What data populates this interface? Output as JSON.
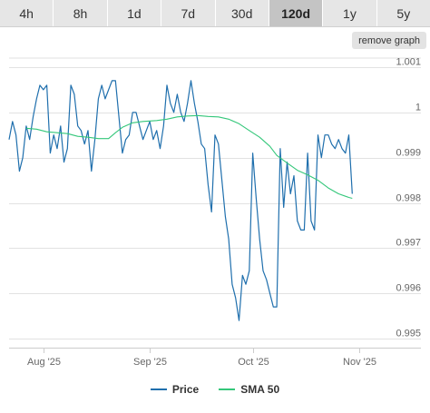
{
  "tabs": [
    {
      "label": "4h",
      "active": false
    },
    {
      "label": "8h",
      "active": false
    },
    {
      "label": "1d",
      "active": false
    },
    {
      "label": "7d",
      "active": false
    },
    {
      "label": "30d",
      "active": false
    },
    {
      "label": "120d",
      "active": true
    },
    {
      "label": "1y",
      "active": false
    },
    {
      "label": "5y",
      "active": false
    }
  ],
  "remove_graph_label": "remove graph",
  "colors": {
    "price": "#1f6fad",
    "sma": "#34c77a",
    "grid": "#e2e2e2",
    "tab_bg": "#e6e6e6",
    "tab_active": "#c4c4c4"
  },
  "chart_data": {
    "type": "line",
    "title": "",
    "xlabel": "",
    "ylabel": "",
    "ylim": [
      0.9948,
      1.0012
    ],
    "yticks": [
      0.995,
      0.996,
      0.997,
      0.998,
      0.999,
      1,
      1.001
    ],
    "ytick_labels": [
      "0.995",
      "0.996",
      "0.997",
      "0.998",
      "0.999",
      "1",
      "1.001"
    ],
    "xticks": [
      "2025-08-01",
      "2025-09-01",
      "2025-10-01",
      "2025-11-01"
    ],
    "xtick_labels": [
      "Aug '25",
      "Sep '25",
      "Oct '25",
      "Nov '25"
    ],
    "xlim": [
      "2025-07-22",
      "2025-11-19"
    ],
    "grid": true,
    "legend_position": "bottom-center",
    "series": [
      {
        "name": "Price",
        "points": [
          [
            "2025-07-22",
            0.9994
          ],
          [
            "2025-07-23",
            0.9998
          ],
          [
            "2025-07-24",
            0.9995
          ],
          [
            "2025-07-25",
            0.9987
          ],
          [
            "2025-07-26",
            0.999
          ],
          [
            "2025-07-27",
            0.9997
          ],
          [
            "2025-07-28",
            0.9994
          ],
          [
            "2025-07-29",
            0.9999
          ],
          [
            "2025-07-30",
            1.0003
          ],
          [
            "2025-07-31",
            1.0006
          ],
          [
            "2025-08-01",
            1.0005
          ],
          [
            "2025-08-02",
            1.0006
          ],
          [
            "2025-08-03",
            0.9991
          ],
          [
            "2025-08-04",
            0.9995
          ],
          [
            "2025-08-05",
            0.9992
          ],
          [
            "2025-08-06",
            0.9997
          ],
          [
            "2025-08-07",
            0.9989
          ],
          [
            "2025-08-08",
            0.9992
          ],
          [
            "2025-08-09",
            1.0006
          ],
          [
            "2025-08-10",
            1.0004
          ],
          [
            "2025-08-11",
            0.9997
          ],
          [
            "2025-08-12",
            0.9996
          ],
          [
            "2025-08-13",
            0.9993
          ],
          [
            "2025-08-14",
            0.9996
          ],
          [
            "2025-08-15",
            0.9987
          ],
          [
            "2025-08-16",
            0.9994
          ],
          [
            "2025-08-17",
            1.0003
          ],
          [
            "2025-08-18",
            1.0006
          ],
          [
            "2025-08-19",
            1.0003
          ],
          [
            "2025-08-20",
            1.0005
          ],
          [
            "2025-08-21",
            1.0007
          ],
          [
            "2025-08-22",
            1.0007
          ],
          [
            "2025-08-23",
            0.9999
          ],
          [
            "2025-08-24",
            0.9991
          ],
          [
            "2025-08-25",
            0.9994
          ],
          [
            "2025-08-26",
            0.9995
          ],
          [
            "2025-08-27",
            1.0
          ],
          [
            "2025-08-28",
            1.0
          ],
          [
            "2025-08-29",
            0.9997
          ],
          [
            "2025-08-30",
            0.9994
          ],
          [
            "2025-08-31",
            0.9996
          ],
          [
            "2025-09-01",
            0.9998
          ],
          [
            "2025-09-02",
            0.9994
          ],
          [
            "2025-09-03",
            0.9996
          ],
          [
            "2025-09-04",
            0.9992
          ],
          [
            "2025-09-05",
            0.9997
          ],
          [
            "2025-09-06",
            1.0006
          ],
          [
            "2025-09-07",
            1.0002
          ],
          [
            "2025-09-08",
            1.0
          ],
          [
            "2025-09-09",
            1.0004
          ],
          [
            "2025-09-10",
            1.0
          ],
          [
            "2025-09-11",
            0.9998
          ],
          [
            "2025-09-12",
            1.0002
          ],
          [
            "2025-09-13",
            1.0007
          ],
          [
            "2025-09-14",
            1.0002
          ],
          [
            "2025-09-15",
            0.9998
          ],
          [
            "2025-09-16",
            0.9993
          ],
          [
            "2025-09-17",
            0.9992
          ],
          [
            "2025-09-18",
            0.9984
          ],
          [
            "2025-09-19",
            0.9978
          ],
          [
            "2025-09-20",
            0.9995
          ],
          [
            "2025-09-21",
            0.9993
          ],
          [
            "2025-09-22",
            0.9985
          ],
          [
            "2025-09-23",
            0.9977
          ],
          [
            "2025-09-24",
            0.9972
          ],
          [
            "2025-09-25",
            0.9962
          ],
          [
            "2025-09-26",
            0.9959
          ],
          [
            "2025-09-27",
            0.9954
          ],
          [
            "2025-09-28",
            0.9964
          ],
          [
            "2025-09-29",
            0.9962
          ],
          [
            "2025-09-30",
            0.9965
          ],
          [
            "2025-10-01",
            0.9991
          ],
          [
            "2025-10-02",
            0.9981
          ],
          [
            "2025-10-03",
            0.9972
          ],
          [
            "2025-10-04",
            0.9965
          ],
          [
            "2025-10-05",
            0.9963
          ],
          [
            "2025-10-06",
            0.996
          ],
          [
            "2025-10-07",
            0.9957
          ],
          [
            "2025-10-08",
            0.9957
          ],
          [
            "2025-10-09",
            0.9992
          ],
          [
            "2025-10-10",
            0.9979
          ],
          [
            "2025-10-11",
            0.9989
          ],
          [
            "2025-10-12",
            0.9982
          ],
          [
            "2025-10-13",
            0.9986
          ],
          [
            "2025-10-14",
            0.9976
          ],
          [
            "2025-10-15",
            0.9974
          ],
          [
            "2025-10-16",
            0.9974
          ],
          [
            "2025-10-17",
            0.9991
          ],
          [
            "2025-10-18",
            0.9976
          ],
          [
            "2025-10-19",
            0.9974
          ],
          [
            "2025-10-20",
            0.9995
          ],
          [
            "2025-10-21",
            0.999
          ],
          [
            "2025-10-22",
            0.9995
          ],
          [
            "2025-10-23",
            0.9995
          ],
          [
            "2025-10-24",
            0.9993
          ],
          [
            "2025-10-25",
            0.9992
          ],
          [
            "2025-10-26",
            0.9994
          ],
          [
            "2025-10-27",
            0.9992
          ],
          [
            "2025-10-28",
            0.9991
          ],
          [
            "2025-10-29",
            0.9995
          ],
          [
            "2025-10-30",
            0.9982
          ]
        ]
      },
      {
        "name": "SMA 50",
        "points": [
          [
            "2025-07-27",
            0.99965
          ],
          [
            "2025-07-30",
            0.99963
          ],
          [
            "2025-08-02",
            0.99957
          ],
          [
            "2025-08-05",
            0.99955
          ],
          [
            "2025-08-08",
            0.99953
          ],
          [
            "2025-08-11",
            0.99947
          ],
          [
            "2025-08-14",
            0.99945
          ],
          [
            "2025-08-17",
            0.99942
          ],
          [
            "2025-08-20",
            0.99942
          ],
          [
            "2025-08-22",
            0.99955
          ],
          [
            "2025-08-24",
            0.99967
          ],
          [
            "2025-08-27",
            0.99977
          ],
          [
            "2025-08-30",
            0.9998
          ],
          [
            "2025-09-03",
            0.99982
          ],
          [
            "2025-09-06",
            0.99985
          ],
          [
            "2025-09-09",
            0.9999
          ],
          [
            "2025-09-12",
            0.99992
          ],
          [
            "2025-09-15",
            0.99993
          ],
          [
            "2025-09-18",
            0.99991
          ],
          [
            "2025-09-21",
            0.9999
          ],
          [
            "2025-09-24",
            0.99985
          ],
          [
            "2025-09-27",
            0.99975
          ],
          [
            "2025-09-30",
            0.9996
          ],
          [
            "2025-10-03",
            0.99945
          ],
          [
            "2025-10-06",
            0.99925
          ],
          [
            "2025-10-08",
            0.99905
          ],
          [
            "2025-10-11",
            0.99888
          ],
          [
            "2025-10-14",
            0.99872
          ],
          [
            "2025-10-17",
            0.99862
          ],
          [
            "2025-10-20",
            0.9985
          ],
          [
            "2025-10-23",
            0.99833
          ],
          [
            "2025-10-26",
            0.9982
          ],
          [
            "2025-10-29",
            0.99812
          ],
          [
            "2025-10-30",
            0.9981
          ]
        ]
      }
    ]
  },
  "legend": {
    "price_label": "Price",
    "sma_label": "SMA 50"
  }
}
